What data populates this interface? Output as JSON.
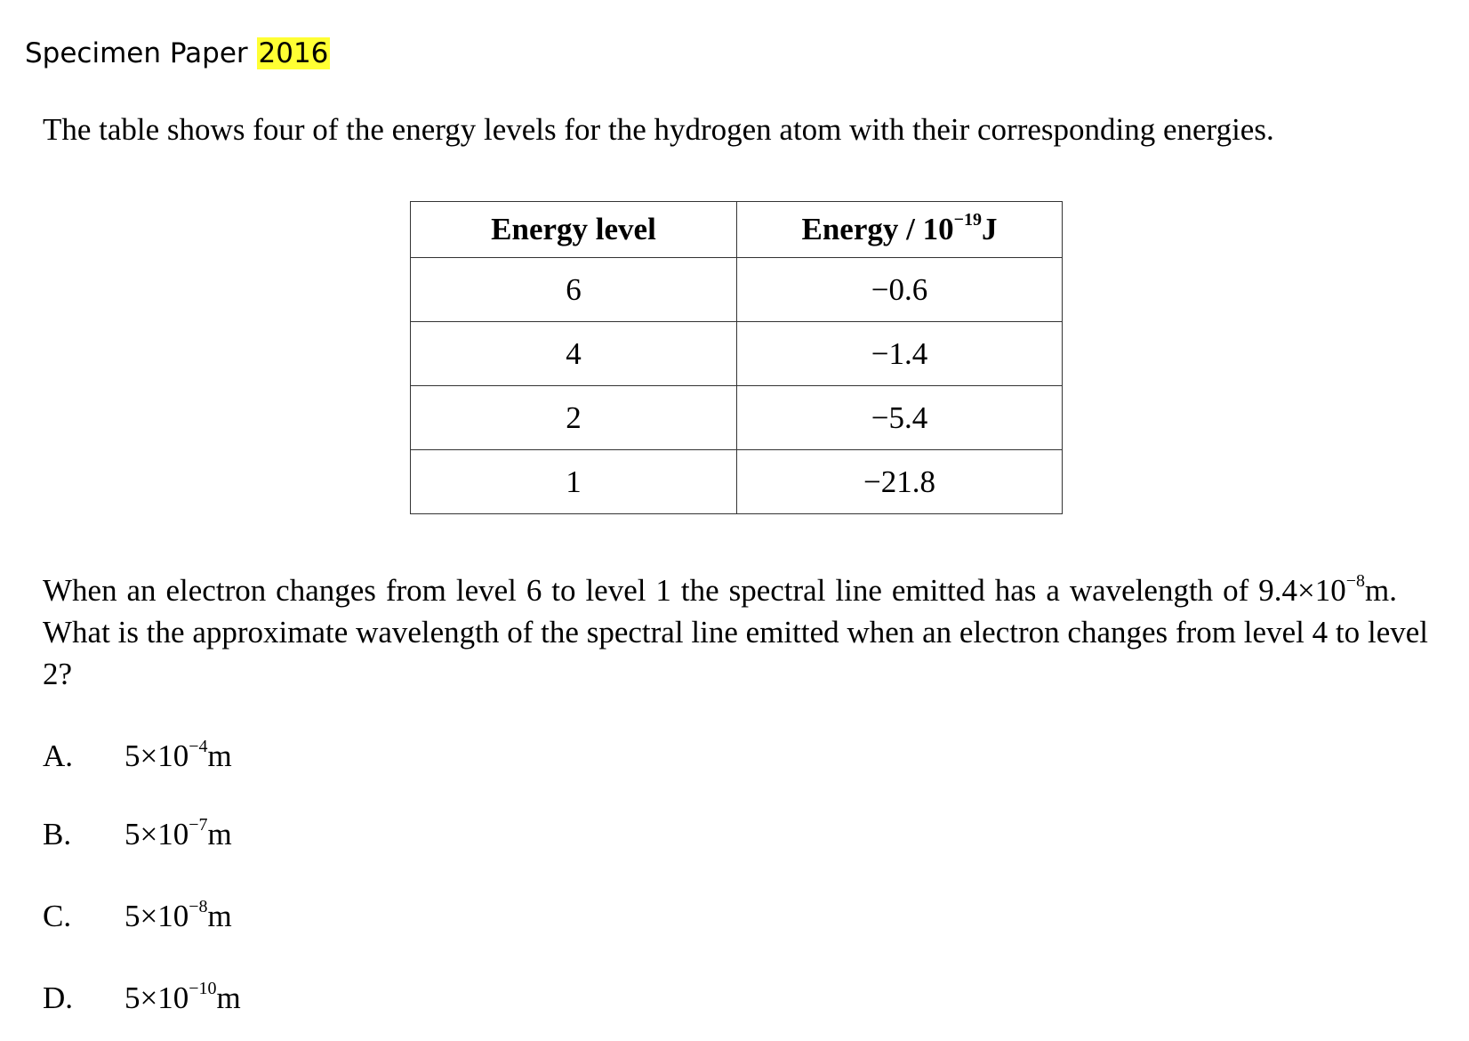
{
  "header": {
    "title": "Specimen Paper",
    "year": "2016"
  },
  "intro": "The table shows four of the energy levels for the hydrogen atom with their corresponding energies.",
  "table": {
    "col1_header": "Energy level",
    "col2_header_text": "Energy / 10",
    "col2_header_exp": "−19",
    "col2_header_unit": "J",
    "rows": [
      {
        "level": "6",
        "energy": "−0.6"
      },
      {
        "level": "4",
        "energy": "−1.4"
      },
      {
        "level": "2",
        "energy": "−5.4"
      },
      {
        "level": "1",
        "energy": "−21.8"
      }
    ]
  },
  "question": {
    "part1": "When an electron changes from level 6 to level 1 the spectral line emitted has a wavelength of 9.4×10",
    "exp": "−8",
    "part2": "m. What is the approximate wavelength of the spectral line emitted when an electron changes from level 4 to level 2?"
  },
  "options": [
    {
      "letter": "A.",
      "mantissa": "5×10",
      "exp": "−4",
      "unit": "m"
    },
    {
      "letter": "B.",
      "mantissa": "5×10",
      "exp": "−7",
      "unit": "m"
    },
    {
      "letter": "C.",
      "mantissa": "5×10",
      "exp": "−8",
      "unit": "m"
    },
    {
      "letter": "D.",
      "mantissa": "5×10",
      "exp": "−10",
      "unit": "m"
    }
  ],
  "colors": {
    "highlight": "#ffff33",
    "text": "#000000",
    "table_border": "#333333"
  }
}
